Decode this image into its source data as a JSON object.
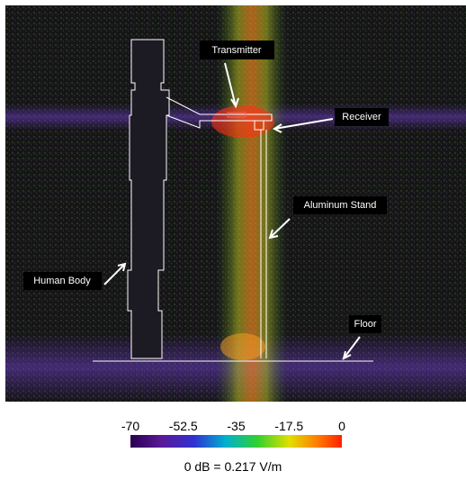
{
  "labels": {
    "transmitter": "Transmitter",
    "receiver": "Receiver",
    "stand": "Aluminum Stand",
    "body": "Human Body",
    "floor": "Floor"
  },
  "colorbar": {
    "range": [
      -70,
      0
    ],
    "ticks": [
      -70,
      -52.5,
      -35,
      -17.5,
      0
    ]
  },
  "caption": "0 dB = 0.217 V/m"
}
